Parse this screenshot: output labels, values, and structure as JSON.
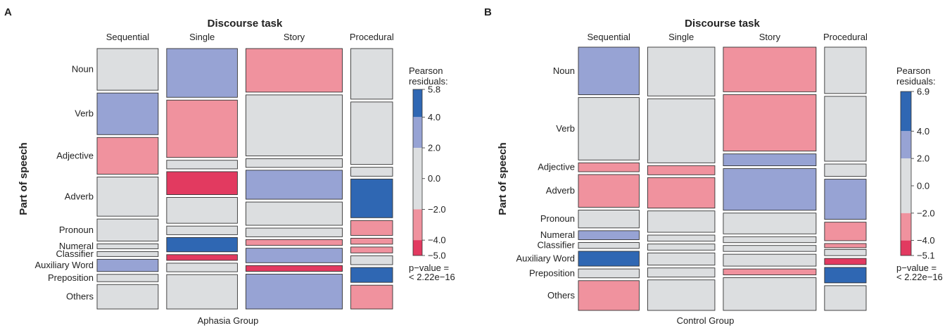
{
  "colors": {
    "strong_positive": "#2f67b3",
    "positive": "#97a3d4",
    "neutral": "#dcdee0",
    "negative": "#f0929e",
    "strong_negative": "#e23a60"
  },
  "chart_data": [
    {
      "type": "mosaic",
      "panel": "A",
      "title": "Discourse task",
      "ylabel": "Part of speech",
      "group_label": "Aphasia Group",
      "columns": [
        "Sequential",
        "Single",
        "Story",
        "Procedural"
      ],
      "rows": [
        "Noun",
        "Verb",
        "Adjective",
        "Adverb",
        "Pronoun",
        "Numeral",
        "Classifier",
        "Auxiliary Word",
        "Preposition",
        "Others"
      ],
      "column_share": [
        0.19,
        0.22,
        0.3,
        0.13
      ],
      "cells": [
        {
          "height": [
            0.17,
            0.17,
            0.15,
            0.16,
            0.09,
            0.02,
            0.02,
            0.05,
            0.03,
            0.1
          ],
          "residual_level": [
            0,
            1,
            -1,
            0,
            0,
            0,
            0,
            1,
            0,
            0
          ]
        },
        {
          "height": [
            0.17,
            0.2,
            0.03,
            0.08,
            0.09,
            0.03,
            0.05,
            0.02,
            0.03,
            0.12
          ],
          "residual_level": [
            1,
            -1,
            0,
            -2,
            0,
            0,
            2,
            -2,
            0,
            0
          ]
        },
        {
          "height": [
            0.15,
            0.21,
            0.03,
            0.1,
            0.08,
            0.03,
            0.02,
            0.05,
            0.02,
            0.12
          ],
          "residual_level": [
            -1,
            0,
            0,
            1,
            0,
            0,
            -1,
            1,
            -2,
            1
          ]
        },
        {
          "height": [
            0.17,
            0.21,
            0.03,
            0.13,
            0.05,
            0.02,
            0.02,
            0.03,
            0.05,
            0.08
          ],
          "residual_level": [
            0,
            0,
            0,
            2,
            -1,
            -1,
            -1,
            0,
            2,
            -1
          ]
        }
      ],
      "legend": {
        "title": "Pearson residuals:",
        "ticks": [
          "5.8",
          "4.0",
          "2.0",
          "0.0",
          "−2.0",
          "−4.0",
          "−5.0"
        ],
        "tick_values": [
          5.8,
          4.0,
          2.0,
          0.0,
          -2.0,
          -4.0,
          -5.0
        ],
        "range": [
          -5.0,
          5.8
        ]
      },
      "p_value_text": [
        "p−value =",
        "< 2.22e−16"
      ]
    },
    {
      "type": "mosaic",
      "panel": "B",
      "title": "Discourse task",
      "ylabel": "Part of speech",
      "group_label": "Control Group",
      "columns": [
        "Sequential",
        "Single",
        "Story",
        "Procedural"
      ],
      "rows": [
        "Noun",
        "Verb",
        "Adjective",
        "Adverb",
        "Pronoun",
        "Numeral",
        "Classifier",
        "Auxiliary Word",
        "Preposition",
        "Others"
      ],
      "column_share": [
        0.19,
        0.21,
        0.29,
        0.13
      ],
      "cells": [
        {
          "height": [
            0.16,
            0.21,
            0.03,
            0.11,
            0.06,
            0.03,
            0.02,
            0.05,
            0.03,
            0.1
          ],
          "residual_level": [
            1,
            0,
            -1,
            -1,
            0,
            1,
            0,
            2,
            0,
            -1
          ]
        },
        {
          "height": [
            0.16,
            0.21,
            0.03,
            0.1,
            0.07,
            0.02,
            0.02,
            0.04,
            0.03,
            0.1
          ],
          "residual_level": [
            0,
            0,
            -1,
            -1,
            0,
            0,
            0,
            0,
            0,
            0
          ]
        },
        {
          "height": [
            0.15,
            0.19,
            0.04,
            0.14,
            0.07,
            0.02,
            0.02,
            0.04,
            0.02,
            0.11
          ],
          "residual_level": [
            -1,
            -1,
            1,
            1,
            0,
            0,
            0,
            0,
            -1,
            0
          ]
        },
        {
          "height": [
            0.15,
            0.21,
            0.04,
            0.13,
            0.06,
            0.01,
            0.02,
            0.02,
            0.05,
            0.08
          ],
          "residual_level": [
            0,
            0,
            0,
            1,
            -1,
            -1,
            0,
            -2,
            2,
            0
          ]
        }
      ],
      "legend": {
        "title": "Pearson residuals:",
        "ticks": [
          "6.9",
          "4.0",
          "2.0",
          "0.0",
          "−2.0",
          "−4.0",
          "−5.1"
        ],
        "tick_values": [
          6.9,
          4.0,
          2.0,
          0.0,
          -2.0,
          -4.0,
          -5.1
        ],
        "range": [
          -5.1,
          6.9
        ]
      },
      "p_value_text": [
        "p−value =",
        "< 2.22e−16"
      ]
    }
  ]
}
